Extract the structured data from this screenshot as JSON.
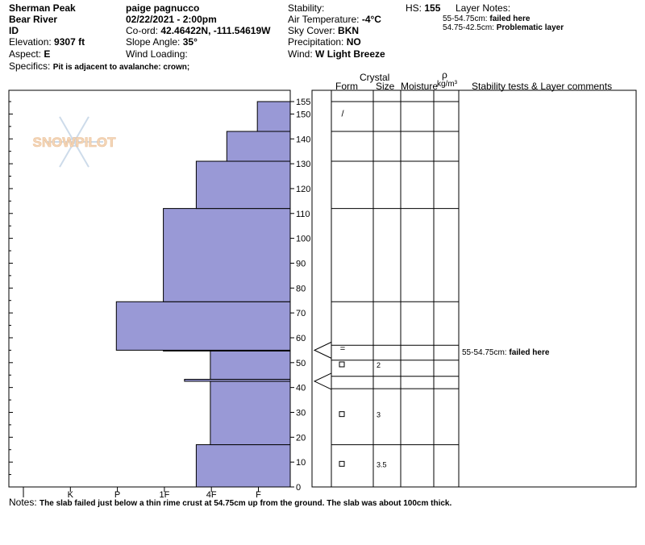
{
  "header": {
    "location": "Sherman Peak",
    "range": "Bear River",
    "state": "ID",
    "elevation_label": "Elevation:",
    "elevation": "9307 ft",
    "aspect_label": "Aspect:",
    "aspect": "E",
    "specifics_label": "Specifics:",
    "specifics": "Pit is adjacent to avalanche: crown;",
    "observer": "paige pagnucco",
    "datetime": "02/22/2021 - 2:00pm",
    "coord_label": "Co-ord:",
    "coord": "42.46422N, -111.54619W",
    "slope_label": "Slope Angle:",
    "slope": "35°",
    "wind_loading_label": "Wind Loading:",
    "stability_label": "Stability:",
    "air_temp_label": "Air Temperature:",
    "air_temp": "-4°C",
    "sky_label": "Sky Cover:",
    "sky": "BKN",
    "precip_label": "Precipitation:",
    "precip": "NO",
    "wind_label": "Wind:",
    "wind": "W Light Breeze",
    "hs_label": "HS:",
    "hs": "155",
    "layer_notes_label": "Layer Notes:",
    "layer_note_1_range": "55-54.75cm:",
    "layer_note_1_text": "failed here",
    "layer_note_2_range": "54.75-42.5cm:",
    "layer_note_2_text": "Problematic layer"
  },
  "columns": {
    "form": "Form",
    "crystal": "Crystal",
    "size": "Size",
    "moisture": "Moisture",
    "rho": "ρ",
    "density_unit": "kg/m³",
    "stability": "Stability tests & Layer comments"
  },
  "watermark": "SNOWPILOT",
  "notes_label": "Notes:",
  "notes": "The slab failed just below a thin rime crust at 54.75cm up from the ground. The slab was about 100cm thick.",
  "chart_data": {
    "type": "bar",
    "orientation": "horizontal",
    "title": "",
    "xlabel": "",
    "ylabel": "",
    "x_categories": [
      "I",
      "K",
      "P",
      "1F",
      "4F",
      "F"
    ],
    "ylim": [
      0,
      155
    ],
    "y_ticks": [
      0,
      10,
      20,
      30,
      40,
      50,
      60,
      70,
      80,
      90,
      100,
      110,
      120,
      130,
      140,
      150,
      155
    ],
    "fill_color": "#9999d6",
    "hardness_layers": [
      {
        "bottom": 0,
        "top": 17,
        "hardness": 2.0
      },
      {
        "bottom": 17,
        "top": 42.5,
        "hardness": 1.7
      },
      {
        "bottom": 42.5,
        "top": 43.3,
        "hardness": 2.25
      },
      {
        "bottom": 43.3,
        "top": 54.75,
        "hardness": 1.7
      },
      {
        "bottom": 54.75,
        "top": 55,
        "hardness": 2.7
      },
      {
        "bottom": 55,
        "top": 74.5,
        "hardness": 3.7
      },
      {
        "bottom": 74.5,
        "top": 112,
        "hardness": 2.7
      },
      {
        "bottom": 112,
        "top": 131,
        "hardness": 2.0
      },
      {
        "bottom": 131,
        "top": 143,
        "hardness": 1.35
      },
      {
        "bottom": 143,
        "top": 155,
        "hardness": 0.7
      }
    ],
    "layer_lines": [
      0,
      17,
      39.5,
      44.5,
      51,
      57,
      74.5,
      112,
      131,
      143,
      155
    ],
    "pointer_depths": [
      55,
      42.5
    ],
    "grains": [
      {
        "depth": 149,
        "symbol": "/",
        "size": ""
      },
      {
        "depth": 54.5,
        "symbol": "=",
        "size": ""
      },
      {
        "depth": 48,
        "symbol": "□",
        "size": "2"
      },
      {
        "depth": 28,
        "symbol": "□",
        "size": "3"
      },
      {
        "depth": 8,
        "symbol": "□",
        "size": "3.5"
      }
    ],
    "comments": [
      {
        "depth": 54.5,
        "range": "55-54.75cm:",
        "text": "failed here"
      }
    ]
  }
}
